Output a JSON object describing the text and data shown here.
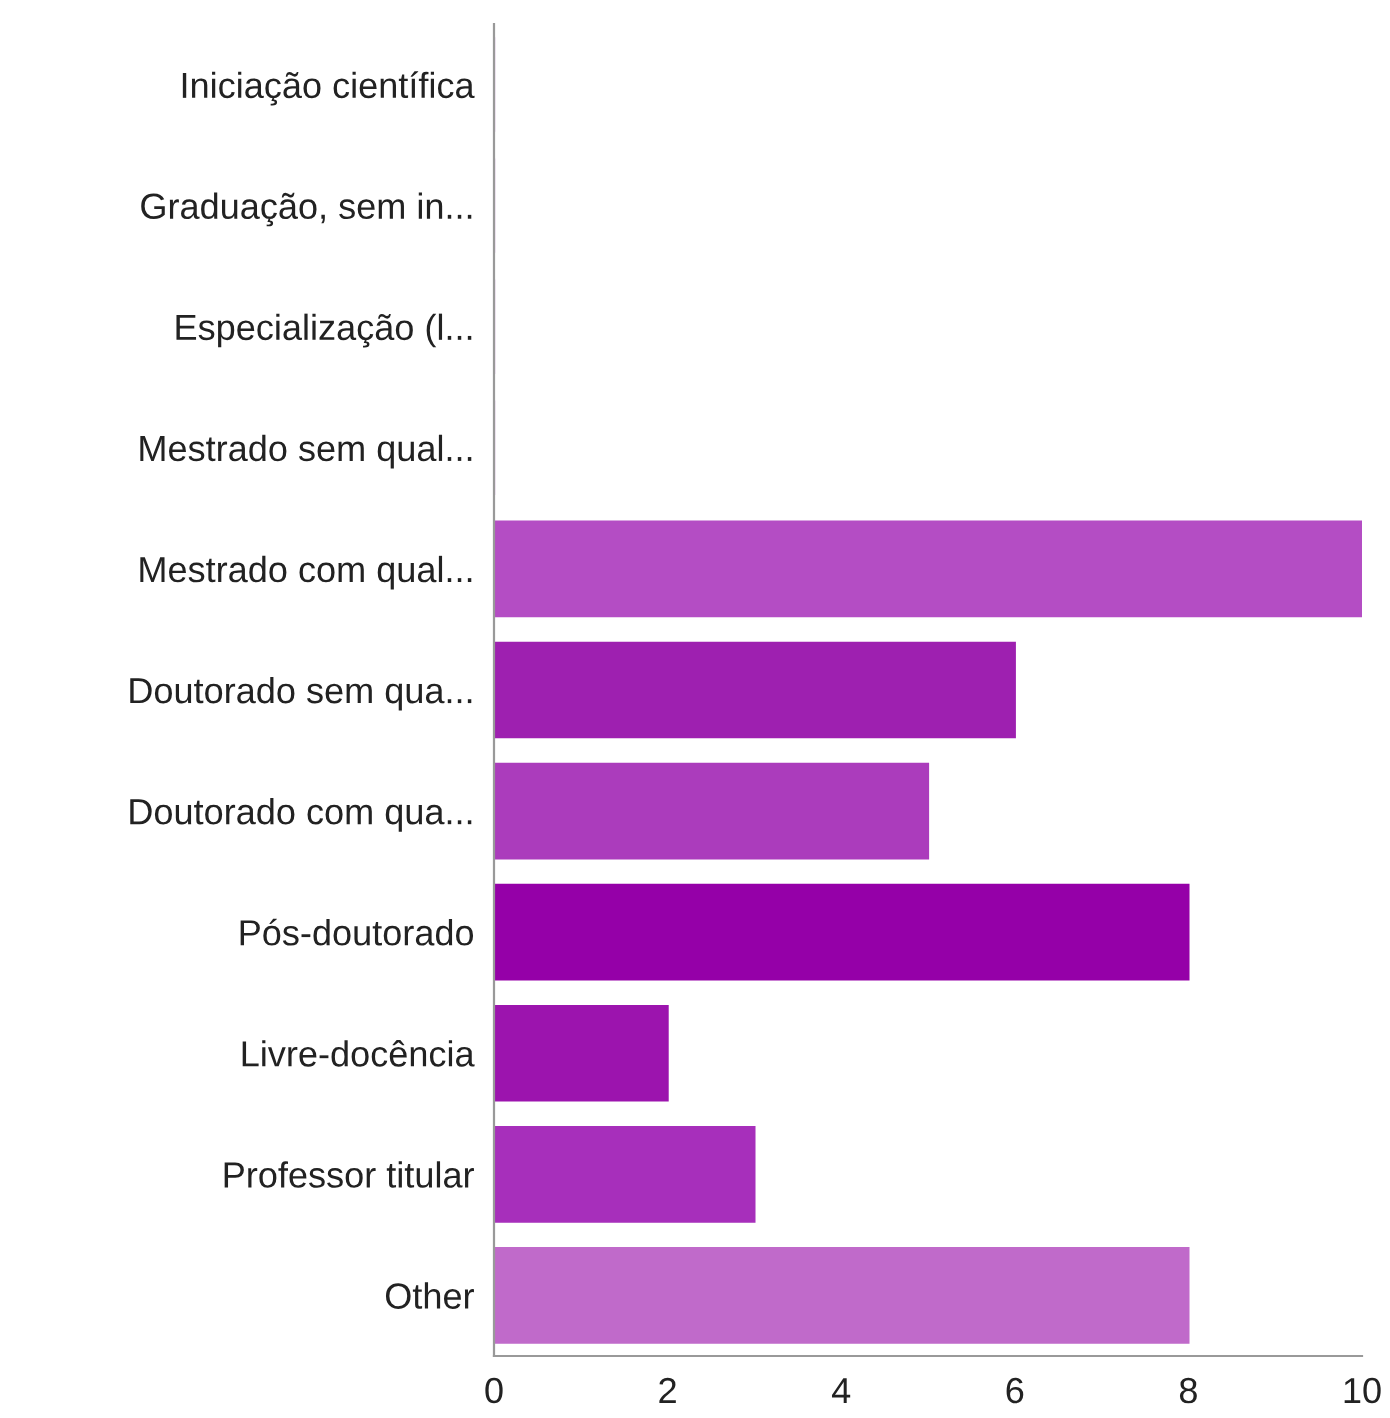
{
  "chart_data": {
    "type": "bar",
    "orientation": "horizontal",
    "categories": [
      "Iniciação científica",
      "Graduação, sem in...",
      "Especialização (l...",
      "Mestrado sem qual...",
      "Mestrado com qual...",
      "Doutorado sem qua...",
      "Doutorado com qua...",
      "Pós-doutorado",
      "Livre-docência",
      "Professor titular",
      "Other"
    ],
    "values": [
      0,
      0,
      0,
      0,
      10,
      6,
      5,
      8,
      2,
      3,
      8
    ],
    "colors": [
      "#b44dc4",
      "#b44dc4",
      "#b44dc4",
      "#b44dc4",
      "#b44dc4",
      "#9e20b0",
      "#ab3cbc",
      "#9500a8",
      "#9c14ae",
      "#a72fbb",
      "#c06aca"
    ],
    "xlim": [
      0,
      10
    ],
    "xticks": [
      0,
      2,
      4,
      6,
      8,
      10
    ],
    "grid": false,
    "legend": false
  }
}
